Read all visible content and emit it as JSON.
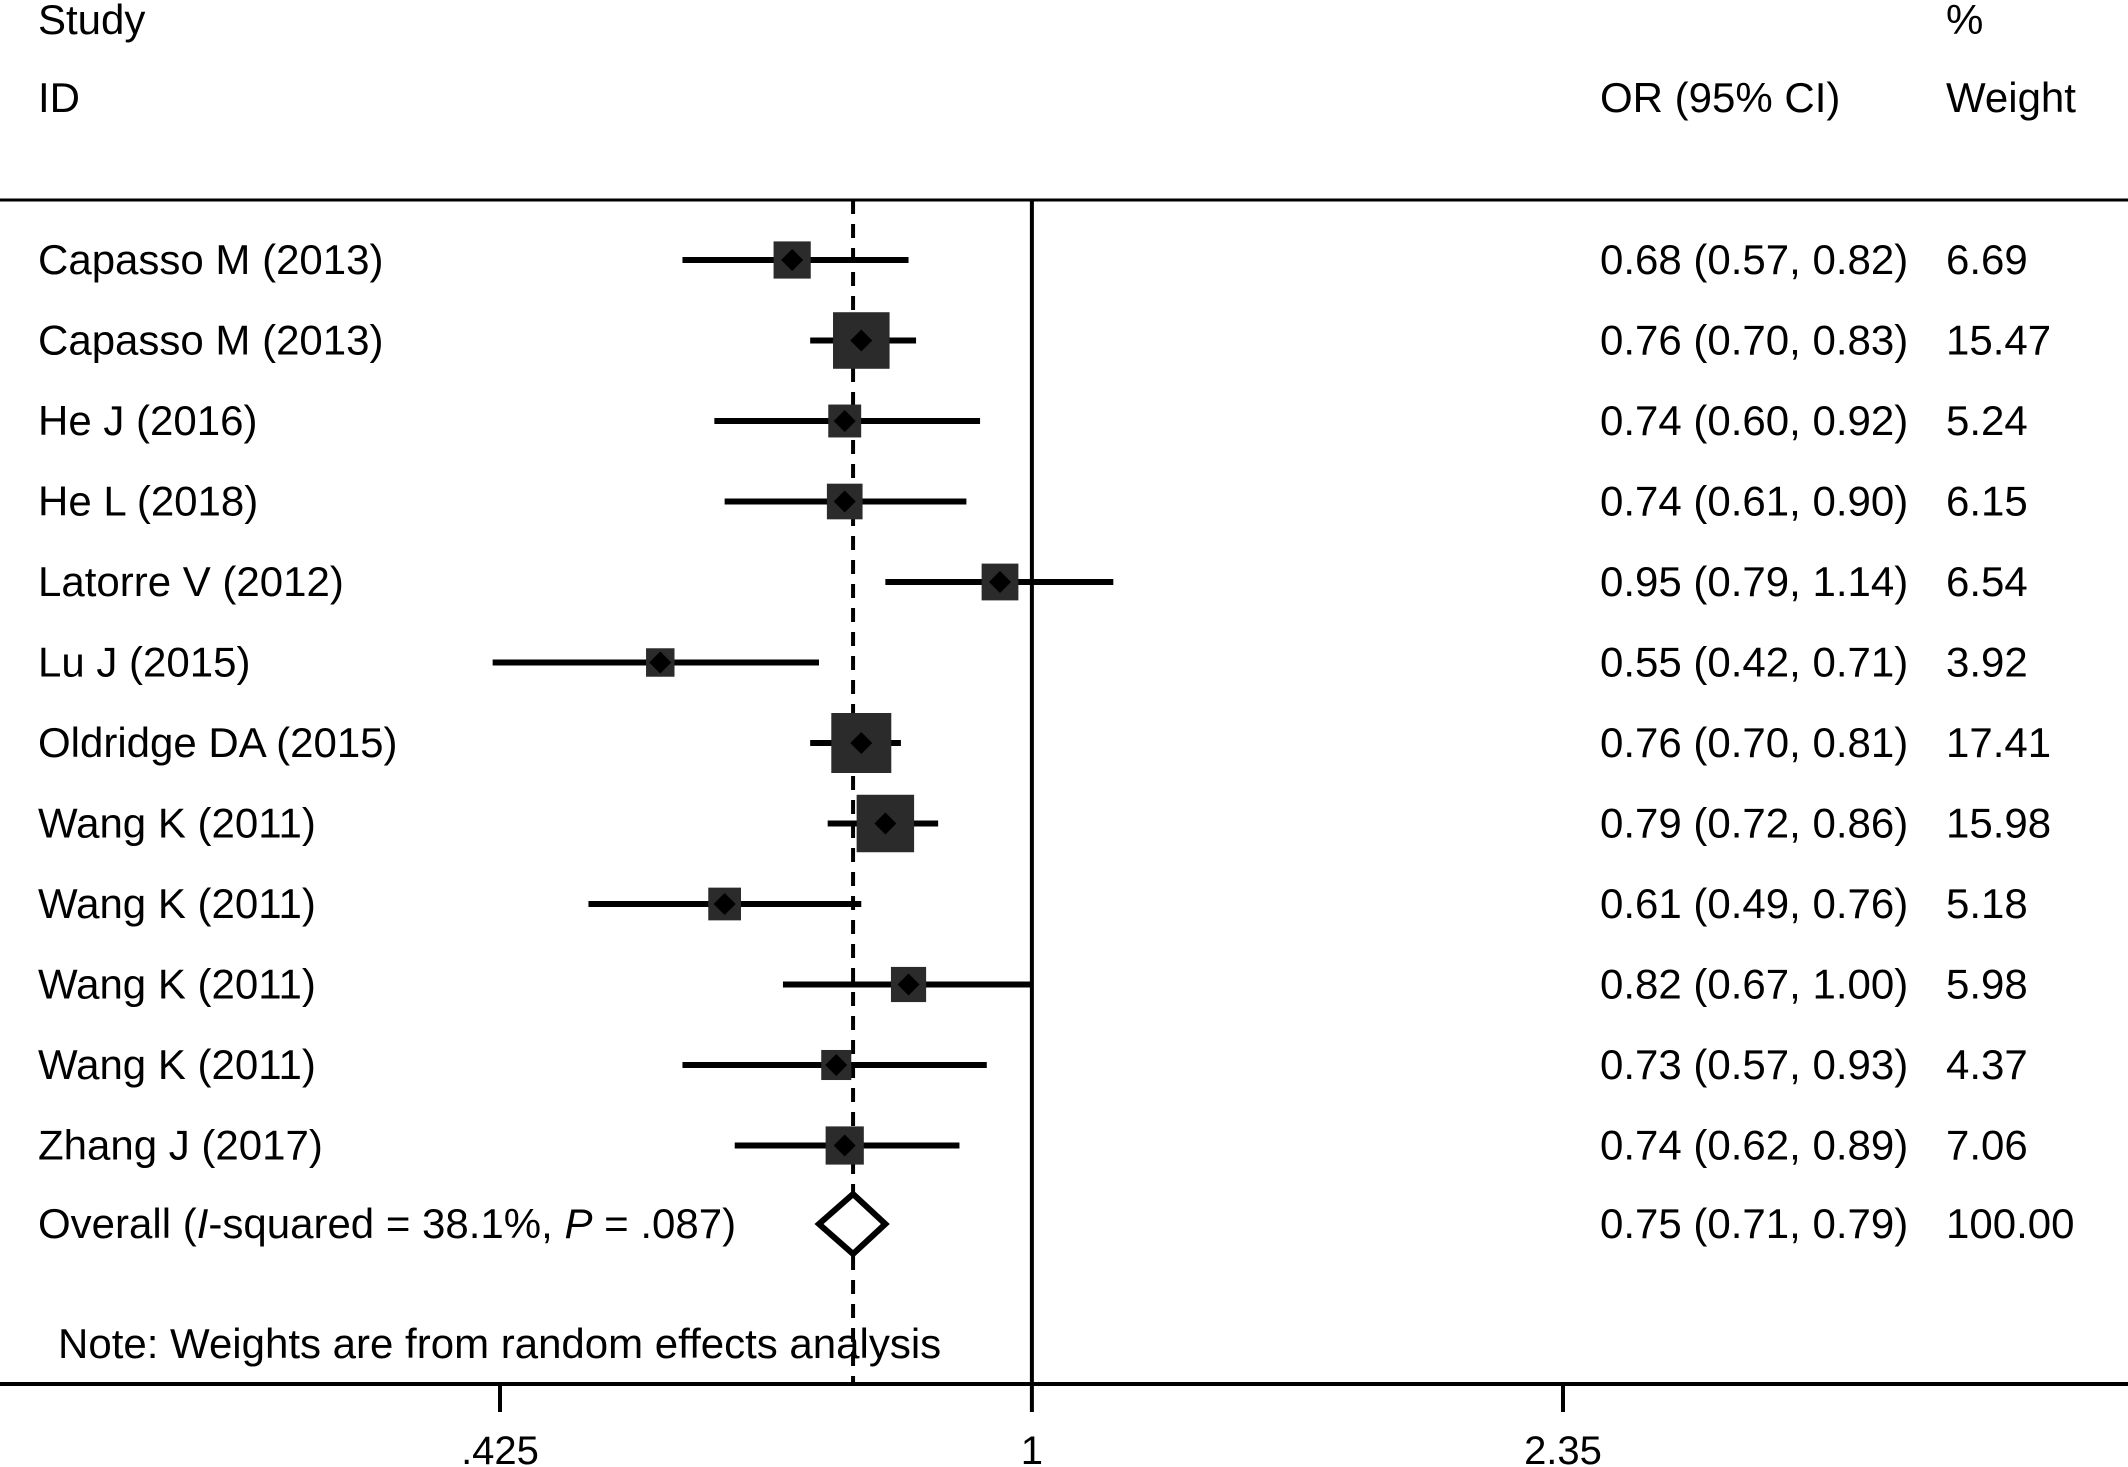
{
  "chart_data": {
    "type": "forest",
    "headers": {
      "study_line1": "Study",
      "study_line2": "ID",
      "effect_label": "OR (95% CI)",
      "weight_line1": "%",
      "weight_line2": "Weight"
    },
    "studies": [
      {
        "label": "Capasso M (2013)",
        "or": 0.68,
        "lo": 0.57,
        "hi": 0.82,
        "ci_text": "0.68 (0.57, 0.82)",
        "weight": 6.69,
        "weight_text": "6.69"
      },
      {
        "label": "Capasso M (2013)",
        "or": 0.76,
        "lo": 0.7,
        "hi": 0.83,
        "ci_text": "0.76 (0.70, 0.83)",
        "weight": 15.47,
        "weight_text": "15.47"
      },
      {
        "label": "He J (2016)",
        "or": 0.74,
        "lo": 0.6,
        "hi": 0.92,
        "ci_text": "0.74 (0.60, 0.92)",
        "weight": 5.24,
        "weight_text": "5.24"
      },
      {
        "label": "He L (2018)",
        "or": 0.74,
        "lo": 0.61,
        "hi": 0.9,
        "ci_text": "0.74 (0.61, 0.90)",
        "weight": 6.15,
        "weight_text": "6.15"
      },
      {
        "label": "Latorre V (2012)",
        "or": 0.95,
        "lo": 0.79,
        "hi": 1.14,
        "ci_text": "0.95 (0.79, 1.14)",
        "weight": 6.54,
        "weight_text": "6.54"
      },
      {
        "label": "Lu J (2015)",
        "or": 0.55,
        "lo": 0.42,
        "hi": 0.71,
        "ci_text": "0.55 (0.42, 0.71)",
        "weight": 3.92,
        "weight_text": "3.92"
      },
      {
        "label": "Oldridge DA (2015)",
        "or": 0.76,
        "lo": 0.7,
        "hi": 0.81,
        "ci_text": "0.76 (0.70, 0.81)",
        "weight": 17.41,
        "weight_text": "17.41"
      },
      {
        "label": "Wang K (2011)",
        "or": 0.79,
        "lo": 0.72,
        "hi": 0.86,
        "ci_text": "0.79 (0.72, 0.86)",
        "weight": 15.98,
        "weight_text": "15.98"
      },
      {
        "label": "Wang K (2011)",
        "or": 0.61,
        "lo": 0.49,
        "hi": 0.76,
        "ci_text": "0.61 (0.49, 0.76)",
        "weight": 5.18,
        "weight_text": "5.18"
      },
      {
        "label": "Wang K (2011)",
        "or": 0.82,
        "lo": 0.67,
        "hi": 1.0,
        "ci_text": "0.82 (0.67, 1.00)",
        "weight": 5.98,
        "weight_text": "5.98"
      },
      {
        "label": "Wang K (2011)",
        "or": 0.73,
        "lo": 0.57,
        "hi": 0.93,
        "ci_text": "0.73 (0.57, 0.93)",
        "weight": 4.37,
        "weight_text": "4.37"
      },
      {
        "label": "Zhang J (2017)",
        "or": 0.74,
        "lo": 0.62,
        "hi": 0.89,
        "ci_text": "0.74 (0.62, 0.89)",
        "weight": 7.06,
        "weight_text": "7.06"
      }
    ],
    "overall": {
      "label_prefix": "Overall",
      "label_i": "I",
      "label_mid": "-squared = 38.1%, ",
      "label_p": "P",
      "label_end": " = .087)",
      "label_open": "(",
      "or": 0.75,
      "lo": 0.71,
      "hi": 0.79,
      "ci_text": "0.75 (0.71, 0.79)",
      "weight": 100.0,
      "weight_text": "100.00"
    },
    "null_line": 1,
    "x_scale": "log",
    "x_ticks": [
      0.425,
      1,
      2.35
    ],
    "x_tick_labels": [
      ".425",
      "1",
      "2.35"
    ],
    "x_range": [
      0.425,
      2.35
    ],
    "note": "Note: Weights are from random effects analysis"
  }
}
